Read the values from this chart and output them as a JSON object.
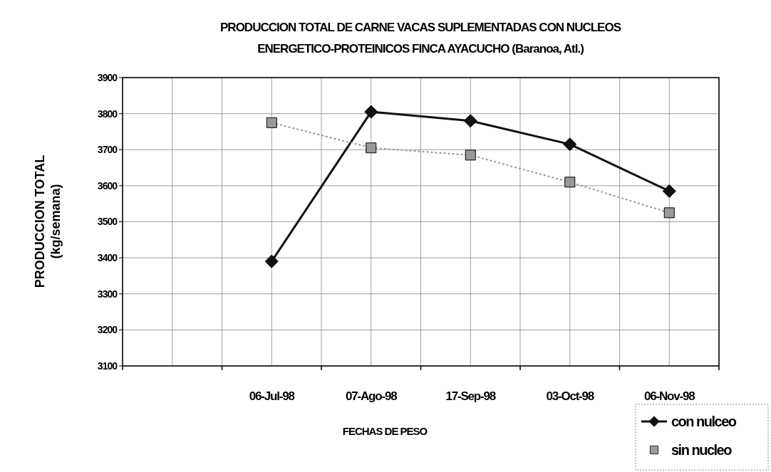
{
  "chart_data": {
    "type": "line",
    "title": "PRODUCCION TOTAL DE CARNE VACAS SUPLEMENTADAS CON NUCLEOS ENERGETICO-PROTEINICOS FINCA AYACUCHO (Baranoa, Atl.)",
    "xlabel": "FECHAS DE PESO",
    "ylabel": "PRODUCCION TOTAL (kg/semana)",
    "categories": [
      null,
      "06-Jul-98",
      "07-Ago-98",
      "17-Sep-98",
      "03-Oct-98",
      "06-Nov-98"
    ],
    "series": [
      {
        "name": "con nulceo",
        "color": "#111111",
        "marker": "diamond",
        "line_style": "solid",
        "values": [
          null,
          3390,
          3805,
          3780,
          3715,
          3585
        ]
      },
      {
        "name": "sin nucleo",
        "color": "#999999",
        "marker": "square",
        "line_style": "dotted",
        "values": [
          null,
          3775,
          3705,
          3685,
          3610,
          3525
        ]
      }
    ],
    "ylim": [
      3100,
      3900
    ],
    "yticks": [
      3100,
      3200,
      3300,
      3400,
      3500,
      3600,
      3700,
      3800,
      3900
    ],
    "grid": true,
    "legend": "bottom right"
  }
}
